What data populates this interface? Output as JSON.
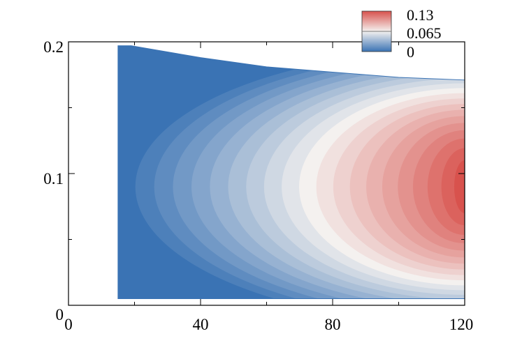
{
  "chart_data": {
    "type": "heatmap",
    "title": "",
    "xlabel": "",
    "ylabel": "",
    "xlim": [
      0,
      120
    ],
    "ylim": [
      0,
      0.2
    ],
    "x_ticks": [
      0,
      40,
      80,
      120
    ],
    "x_tick_labels": [
      "0",
      "40",
      "80",
      "120"
    ],
    "y_ticks": [
      0,
      0.1,
      0.2
    ],
    "y_tick_labels": [
      "0",
      "0.1",
      "0.2"
    ],
    "minor_x_step": 20,
    "minor_y_step": 0.05,
    "grid": false,
    "colormap": "diverging blue-white-red",
    "colors": {
      "low": "#3a73b4",
      "mid": "#f4f1ef",
      "high": "#d8524d"
    },
    "value_range": [
      0,
      0.13
    ],
    "contour_levels": 20,
    "legend": {
      "placement": "top-right",
      "labels": [
        "0.13",
        "0.065",
        "0"
      ],
      "values": [
        0.13,
        0.065,
        0
      ]
    },
    "domain": {
      "x_start": 15,
      "x_end": 120,
      "upper_boundary": [
        [
          15,
          0.197
        ],
        [
          19,
          0.197
        ],
        [
          40,
          0.188
        ],
        [
          60,
          0.181
        ],
        [
          80,
          0.177
        ],
        [
          100,
          0.173
        ],
        [
          120,
          0.171
        ]
      ],
      "lower_boundary": [
        [
          15,
          0.005
        ],
        [
          120,
          0.005
        ]
      ]
    },
    "peak": {
      "x": 120,
      "y": 0.09,
      "value": 0.13
    }
  }
}
